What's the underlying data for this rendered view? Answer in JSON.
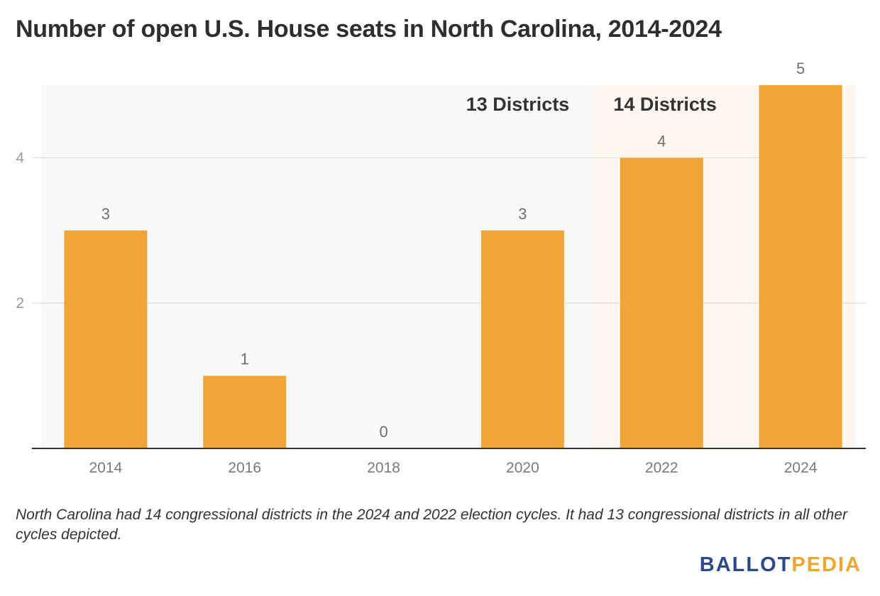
{
  "chart_data": {
    "type": "bar",
    "title": "Number of open U.S. House seats in North Carolina, 2014-2024",
    "categories": [
      "2014",
      "2016",
      "2018",
      "2020",
      "2022",
      "2024"
    ],
    "values": [
      3,
      1,
      0,
      3,
      4,
      5
    ],
    "data_labels": [
      "3",
      "1",
      "0",
      "3",
      "4",
      "5"
    ],
    "ylim": [
      0,
      5
    ],
    "yticks": [
      2,
      4
    ],
    "ytick_labels": [
      "2",
      "4"
    ],
    "grid": true,
    "xlabel": "",
    "ylabel": "",
    "bar_color": "#f0a535",
    "annotations": [
      {
        "text": "13 Districts",
        "categories": [
          "2014",
          "2016",
          "2018",
          "2020"
        ],
        "background": "#f9f9f9"
      },
      {
        "text": "14 Districts",
        "categories": [
          "2022",
          "2024"
        ],
        "background": "#fff7ef"
      }
    ]
  },
  "footnote": "North Carolina had 14 congressional districts in the 2024 and 2022 election cycles. It had 13 congressional districts in all other cycles depicted.",
  "logo": {
    "part1": "BALLOT",
    "part2": "PEDIA"
  }
}
